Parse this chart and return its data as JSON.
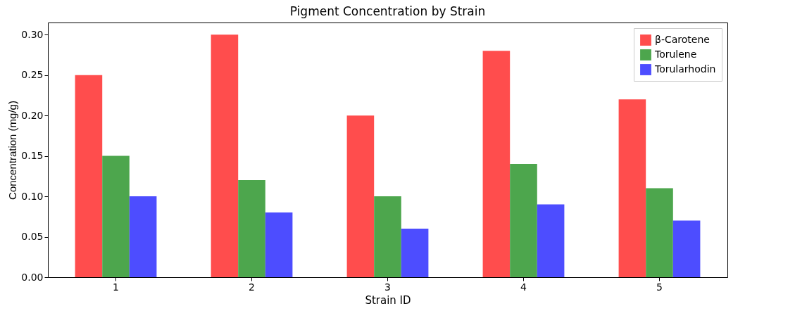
{
  "chart_data": {
    "type": "bar",
    "title": "Pigment Concentration by Strain",
    "xlabel": "Strain ID",
    "ylabel": "Concentration (mg/g)",
    "categories": [
      "1",
      "2",
      "3",
      "4",
      "5"
    ],
    "series": [
      {
        "name": "β-Carotene",
        "color": "#ff4d4d",
        "values": [
          0.25,
          0.3,
          0.2,
          0.28,
          0.22
        ]
      },
      {
        "name": "Torulene",
        "color": "#4da64d",
        "values": [
          0.15,
          0.12,
          0.1,
          0.14,
          0.11
        ]
      },
      {
        "name": "Torularhodin",
        "color": "#4d4dff",
        "values": [
          0.1,
          0.08,
          0.06,
          0.09,
          0.07
        ]
      }
    ],
    "ylim": [
      0,
      0.315
    ],
    "yticks": [
      {
        "value": 0,
        "label": "0.00"
      },
      0.05,
      {
        "value": 0.1,
        "label": "0.10"
      },
      0.15,
      {
        "value": 0.2,
        "label": "0.20"
      },
      0.25,
      {
        "value": 0.3,
        "label": "0.30"
      }
    ],
    "legend": "top right"
  }
}
